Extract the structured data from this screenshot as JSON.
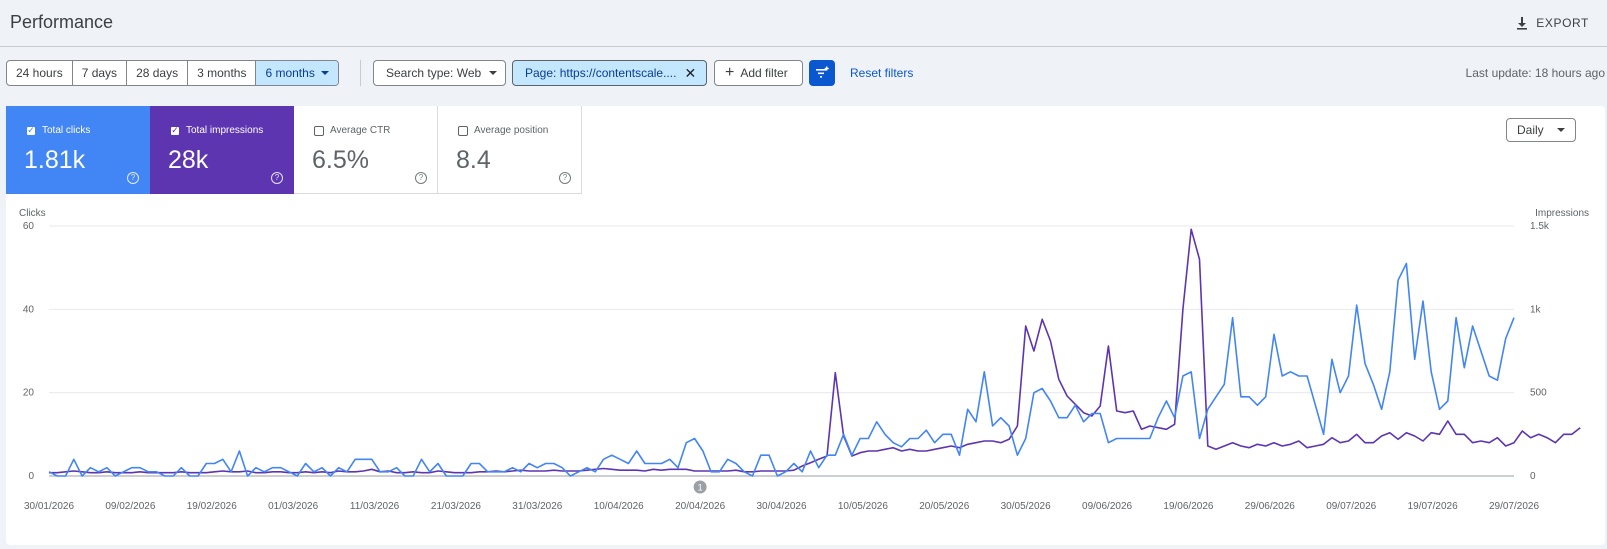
{
  "header": {
    "title": "Performance",
    "export_label": "EXPORT",
    "export_icon": "download-icon"
  },
  "toolbar": {
    "date_ranges": [
      "24 hours",
      "7 days",
      "28 days",
      "3 months",
      "6 months"
    ],
    "active_range": "6 months",
    "search_type_label": "Search type: Web",
    "page_filter_label": "Page: https://contentscale....",
    "add_filter_label": "Add filter",
    "reset_label": "Reset filters",
    "last_update": "Last update: 18 hours ago"
  },
  "metrics": [
    {
      "label": "Total clicks",
      "value": "1.81k",
      "checked": true,
      "color": "#4285f4"
    },
    {
      "label": "Total impressions",
      "value": "28k",
      "checked": true,
      "color": "#5e35b1"
    },
    {
      "label": "Average CTR",
      "value": "6.5%",
      "checked": false
    },
    {
      "label": "Average position",
      "value": "8.4",
      "checked": false
    }
  ],
  "granularity": "Daily",
  "chart_data": {
    "type": "line",
    "title": "",
    "left_axis_label": "Clicks",
    "right_axis_label": "Impressions",
    "left_ticks": [
      "0",
      "20",
      "40",
      "60"
    ],
    "right_ticks": [
      "0",
      "500",
      "1k",
      "1.5k"
    ],
    "left_ylim": [
      0,
      60
    ],
    "right_ylim": [
      0,
      1500
    ],
    "x_start": "30/01/2026",
    "x_end": "29/07/2026",
    "x_tick_labels": [
      "30/01/2026",
      "09/02/2026",
      "19/02/2026",
      "01/03/2026",
      "11/03/2026",
      "21/03/2026",
      "31/03/2026",
      "10/04/2026",
      "20/04/2026",
      "30/04/2026",
      "10/05/2026",
      "20/05/2026",
      "30/05/2026",
      "09/06/2026",
      "19/06/2026",
      "29/06/2026",
      "09/07/2026",
      "19/07/2026",
      "29/07/2026"
    ],
    "annotation": {
      "date": "20/04/2026",
      "label": "1"
    },
    "grid": true,
    "legend": "metric cards above chart",
    "series": [
      {
        "name": "Total clicks",
        "axis": "left",
        "color": "#4285f4",
        "values": [
          1,
          0,
          0,
          4,
          0,
          2,
          1,
          2,
          0,
          1,
          2,
          2,
          1,
          1,
          0,
          0,
          2,
          0,
          0,
          3,
          3,
          4,
          1,
          6,
          0,
          2,
          1,
          2,
          2,
          1,
          0,
          3,
          1,
          2,
          0,
          2,
          1,
          4,
          4,
          4,
          1,
          1,
          2,
          0,
          0,
          4,
          1,
          3,
          0,
          0,
          0,
          3,
          3,
          1,
          1,
          1,
          2,
          1,
          3,
          2,
          3,
          3,
          2,
          0,
          1,
          2,
          1,
          4,
          5,
          4,
          3,
          6,
          3,
          3,
          3,
          4,
          2,
          8,
          9,
          6,
          1,
          1,
          4,
          3,
          1,
          0,
          5,
          5,
          0,
          1,
          3,
          1,
          6,
          2,
          5,
          5,
          10,
          5,
          9,
          9,
          13,
          10,
          8,
          7,
          9,
          9,
          11,
          8,
          10,
          10,
          5,
          16,
          13,
          25,
          12,
          14,
          12,
          5,
          9,
          20,
          21,
          18,
          14,
          14,
          17,
          13,
          15,
          15,
          8,
          9,
          9,
          9,
          9,
          9,
          14,
          18,
          14,
          24,
          25,
          9,
          16,
          19,
          22,
          38,
          19,
          19,
          17,
          19,
          34,
          24,
          25,
          24,
          24,
          17,
          10,
          28,
          20,
          24,
          41,
          27,
          22,
          16,
          25,
          47,
          51,
          28,
          42,
          25,
          16,
          18,
          38,
          26,
          36,
          30,
          24,
          23,
          33,
          38
        ]
      },
      {
        "name": "Total impressions",
        "axis": "right",
        "color": "#5e35b1",
        "values": [
          20,
          20,
          25,
          30,
          25,
          20,
          20,
          25,
          20,
          20,
          20,
          25,
          20,
          20,
          20,
          20,
          25,
          20,
          20,
          20,
          25,
          30,
          25,
          25,
          30,
          20,
          20,
          25,
          25,
          20,
          20,
          25,
          20,
          25,
          20,
          30,
          25,
          25,
          30,
          40,
          25,
          30,
          20,
          20,
          25,
          20,
          20,
          30,
          25,
          20,
          20,
          20,
          25,
          25,
          30,
          25,
          30,
          35,
          30,
          30,
          30,
          35,
          30,
          30,
          30,
          35,
          40,
          45,
          40,
          35,
          35,
          35,
          30,
          40,
          35,
          40,
          40,
          40,
          30,
          30,
          30,
          30,
          30,
          35,
          25,
          25,
          30,
          30,
          30,
          30,
          35,
          60,
          80,
          100,
          120,
          620,
          240,
          120,
          140,
          150,
          150,
          160,
          170,
          150,
          160,
          150,
          150,
          160,
          170,
          180,
          170,
          190,
          200,
          210,
          210,
          200,
          220,
          300,
          900,
          750,
          940,
          810,
          580,
          480,
          430,
          380,
          360,
          420,
          780,
          390,
          380,
          390,
          280,
          300,
          290,
          280,
          310,
          1000,
          1480,
          1300,
          180,
          160,
          180,
          200,
          180,
          170,
          190,
          180,
          200,
          180,
          190,
          210,
          170,
          180,
          190,
          230,
          200,
          210,
          250,
          200,
          200,
          240,
          260,
          220,
          260,
          240,
          210,
          260,
          250,
          330,
          250,
          250,
          200,
          210,
          200,
          230,
          180,
          200,
          270,
          230,
          250,
          230,
          200,
          250,
          250,
          290
        ]
      }
    ]
  }
}
